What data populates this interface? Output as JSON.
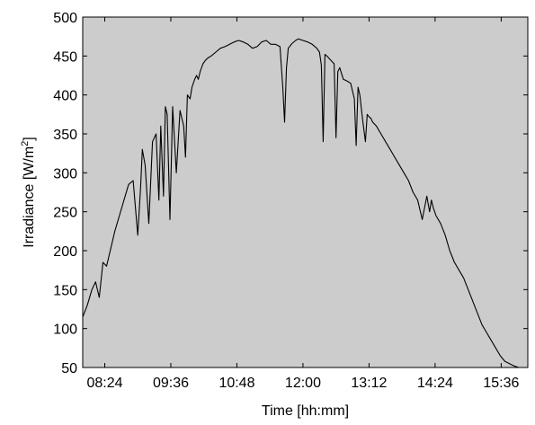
{
  "chart_data": {
    "type": "line",
    "title": "",
    "xlabel": "Time [hh:mm]",
    "ylabel_main": "Irradiance [W/m",
    "ylabel_sup": "2",
    "ylabel_end": "]",
    "xlim": [
      "08:00",
      "16:05"
    ],
    "ylim": [
      50,
      500
    ],
    "xtick_labels": [
      "08:24",
      "09:36",
      "10:48",
      "12:00",
      "13:12",
      "14:24",
      "15:36"
    ],
    "ytick_labels": [
      "50",
      "100",
      "150",
      "200",
      "250",
      "300",
      "350",
      "400",
      "450",
      "500"
    ],
    "grid": false,
    "colors": {
      "plot_background": "#cccccc",
      "line": "#000000",
      "axes": "#000000"
    },
    "series": [
      {
        "x": [
          "08:00",
          "08:05",
          "08:10",
          "08:14",
          "08:18",
          "08:22",
          "08:26",
          "08:30",
          "08:35",
          "08:40",
          "08:45",
          "08:50",
          "08:55",
          "09:00",
          "09:03",
          "09:05",
          "09:08",
          "09:12",
          "09:16",
          "09:20",
          "09:23",
          "09:25",
          "09:28",
          "09:30",
          "09:32",
          "09:35",
          "09:38",
          "09:42",
          "09:46",
          "09:50",
          "09:52",
          "09:54",
          "09:57",
          "09:59",
          "10:02",
          "10:04",
          "10:06",
          "10:08",
          "10:11",
          "10:14",
          "10:17",
          "10:20",
          "10:25",
          "10:30",
          "10:35",
          "10:40",
          "10:45",
          "10:50",
          "10:55",
          "11:00",
          "11:05",
          "11:10",
          "11:15",
          "11:20",
          "11:25",
          "11:30",
          "11:35",
          "11:38",
          "11:40",
          "11:42",
          "11:44",
          "11:48",
          "11:52",
          "11:55",
          "12:00",
          "12:05",
          "12:10",
          "12:15",
          "12:18",
          "12:20",
          "12:22",
          "12:24",
          "12:26",
          "12:30",
          "12:34",
          "12:36",
          "12:38",
          "12:40",
          "12:44",
          "12:48",
          "12:52",
          "12:56",
          "12:58",
          "13:00",
          "13:02",
          "13:05",
          "13:08",
          "13:10",
          "13:12",
          "13:14",
          "13:16",
          "13:20",
          "13:25",
          "13:30",
          "13:35",
          "13:40",
          "13:45",
          "13:50",
          "13:55",
          "14:00",
          "14:05",
          "14:10",
          "14:15",
          "14:18",
          "14:20",
          "14:22",
          "14:25",
          "14:30",
          "14:35",
          "14:40",
          "14:45",
          "14:50",
          "14:55",
          "15:00",
          "15:05",
          "15:10",
          "15:15",
          "15:20",
          "15:25",
          "15:30",
          "15:35",
          "15:40",
          "15:45",
          "15:50",
          "15:55",
          "16:00",
          "16:02"
        ],
        "values": [
          115,
          130,
          150,
          160,
          140,
          185,
          180,
          200,
          225,
          245,
          265,
          285,
          290,
          220,
          280,
          330,
          310,
          235,
          340,
          350,
          265,
          360,
          270,
          385,
          375,
          240,
          385,
          300,
          380,
          360,
          320,
          400,
          395,
          410,
          420,
          425,
          420,
          430,
          440,
          445,
          448,
          450,
          455,
          460,
          462,
          465,
          468,
          470,
          468,
          465,
          460,
          462,
          468,
          470,
          465,
          465,
          462,
          410,
          365,
          435,
          460,
          466,
          470,
          472,
          470,
          468,
          465,
          460,
          455,
          438,
          340,
          452,
          450,
          445,
          440,
          345,
          430,
          435,
          420,
          418,
          415,
          395,
          335,
          410,
          400,
          368,
          340,
          375,
          372,
          370,
          365,
          360,
          350,
          340,
          330,
          320,
          310,
          300,
          290,
          275,
          265,
          240,
          270,
          250,
          265,
          255,
          245,
          235,
          220,
          200,
          185,
          175,
          165,
          150,
          135,
          120,
          105,
          95,
          85,
          75,
          65,
          58,
          55,
          52,
          50,
          50,
          50
        ]
      }
    ]
  }
}
